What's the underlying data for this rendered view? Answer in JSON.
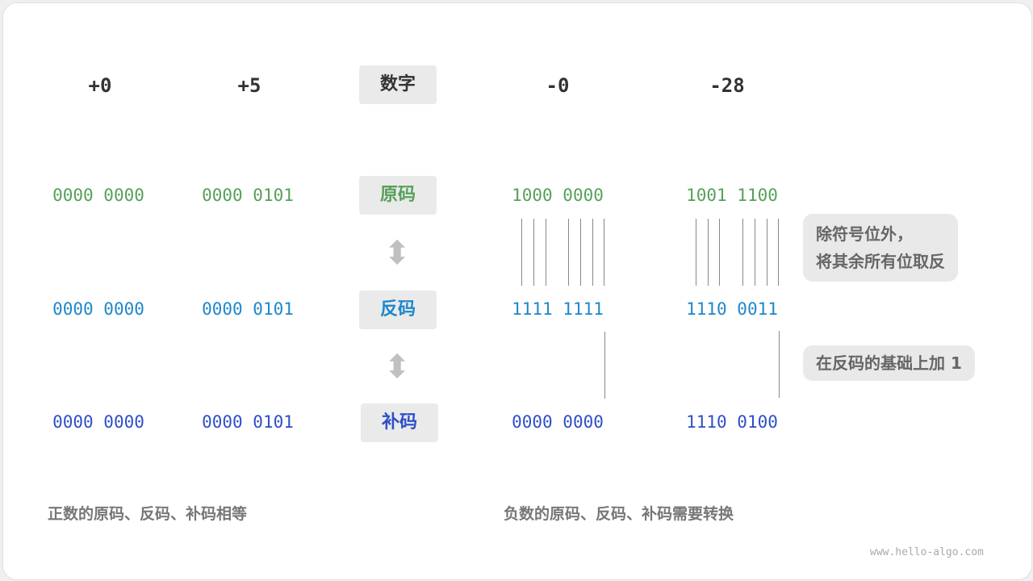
{
  "columns": {
    "c1": "+0",
    "c2": "+5",
    "c3": "-0",
    "c4": "-28"
  },
  "labels": {
    "number": "数字",
    "sign_magnitude": "原码",
    "ones_complement": "反码",
    "twos_complement": "补码"
  },
  "rows": {
    "sign_magnitude": [
      "0000 0000",
      "0000 0101",
      "1000 0000",
      "1001 1100"
    ],
    "ones_complement": [
      "0000 0000",
      "0000 0101",
      "1111 1111",
      "1110 0011"
    ],
    "twos_complement": [
      "0000 0000",
      "0000 0101",
      "0000 0000",
      "1110 0100"
    ]
  },
  "notes": {
    "invert_line1": "除符号位外，",
    "invert_line2": "将其余所有位取反",
    "add_one": "在反码的基础上加 1"
  },
  "captions": {
    "positive": "正数的原码、反码、补码相等",
    "negative": "负数的原码、反码、补码需要转换"
  },
  "watermark": "www.hello-algo.com",
  "colors": {
    "sign_magnitude": "#57a05a",
    "ones_complement": "#1f87cc",
    "twos_complement": "#2e4fc9"
  }
}
